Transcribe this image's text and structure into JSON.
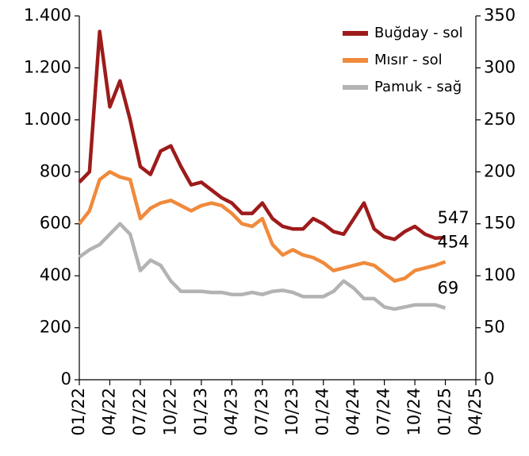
{
  "chart_data": {
    "type": "line",
    "categories": [
      "01/22",
      null,
      null,
      "04/22",
      null,
      null,
      "07/22",
      null,
      null,
      "10/22",
      null,
      null,
      "01/23",
      null,
      null,
      "04/23",
      null,
      null,
      "07/23",
      null,
      null,
      "10/23",
      null,
      null,
      "01/24",
      null,
      null,
      "04/24",
      null,
      null,
      "07/24",
      null,
      null,
      "10/24",
      null,
      null,
      "01/25",
      null,
      null,
      "04/25"
    ],
    "series": [
      {
        "name": "Buğday - sol",
        "color": "#9e1b1b",
        "values": [
          760,
          800,
          1340,
          1050,
          1150,
          1000,
          820,
          790,
          880,
          900,
          820,
          750,
          760,
          730,
          700,
          680,
          640,
          640,
          680,
          620,
          590,
          580,
          580,
          620,
          600,
          570,
          560,
          620,
          680,
          580,
          550,
          540,
          570,
          590,
          560,
          545,
          547,
          null,
          null,
          null
        ]
      },
      {
        "name": "Mısır - sol",
        "color": "#f08a3c",
        "values": [
          600,
          650,
          770,
          800,
          780,
          770,
          620,
          660,
          680,
          690,
          670,
          650,
          670,
          680,
          670,
          640,
          600,
          590,
          620,
          520,
          480,
          500,
          480,
          470,
          450,
          420,
          430,
          440,
          450,
          440,
          410,
          380,
          390,
          420,
          430,
          440,
          454,
          null,
          null,
          null
        ]
      },
      {
        "name": "Pamuk - sağ",
        "color": "#b3b3b3",
        "axis": "y2",
        "values": [
          118,
          125,
          130,
          140,
          150,
          140,
          105,
          115,
          110,
          95,
          85,
          85,
          85,
          84,
          84,
          82,
          82,
          84,
          82,
          85,
          86,
          84,
          80,
          80,
          80,
          85,
          95,
          88,
          78,
          78,
          70,
          68,
          70,
          72,
          72,
          72,
          69,
          null,
          null,
          null
        ]
      }
    ],
    "ylim": [
      0,
      1400
    ],
    "yticks": [
      0,
      200,
      400,
      600,
      800,
      {
        "value": 1000,
        "label": "1.000"
      },
      {
        "value": 1200,
        "label": "1.200"
      },
      {
        "value": 1400,
        "label": "1.400"
      }
    ],
    "y2lim": [
      0,
      350
    ],
    "y2ticks": [
      0,
      50,
      100,
      150,
      200,
      250,
      300,
      350
    ],
    "legend": "top-right"
  }
}
